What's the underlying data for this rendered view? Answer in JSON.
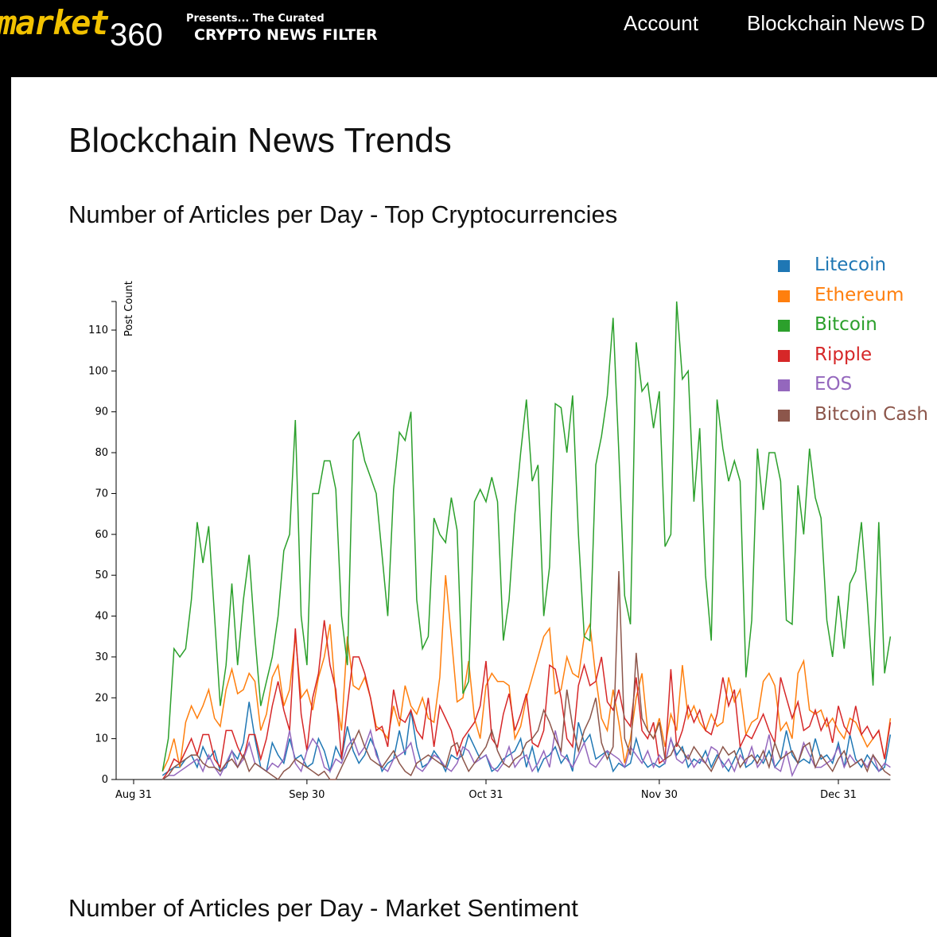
{
  "header": {
    "logo_text": "market360",
    "tagline_top": "Presents... The Curated",
    "tagline_main": "CRYPTO NEWS FILTER",
    "nav": [
      {
        "label": "Account"
      },
      {
        "label": "Blockchain News D"
      }
    ]
  },
  "page": {
    "title": "Blockchain News Trends",
    "section1_title": "Number of Articles per Day - Top Cryptocurrencies",
    "section2_title": "Number of Articles per Day - Market Sentiment"
  },
  "chart_data": {
    "type": "line",
    "title": "",
    "xlabel": "",
    "ylabel": "Post Count",
    "ylim": [
      0,
      117
    ],
    "yticks": [
      0,
      10,
      20,
      30,
      40,
      50,
      60,
      70,
      80,
      90,
      100,
      110
    ],
    "xticks": [
      "Aug 31",
      "Sep 30",
      "Oct 31",
      "Nov 30",
      "Dec 31"
    ],
    "grid": false,
    "legend_position": "top-right",
    "x": [
      "Sep 5",
      "Sep 6",
      "Sep 7",
      "Sep 8",
      "Sep 9",
      "Sep 10",
      "Sep 11",
      "Sep 12",
      "Sep 13",
      "Sep 14",
      "Sep 15",
      "Sep 16",
      "Sep 17",
      "Sep 18",
      "Sep 19",
      "Sep 20",
      "Sep 21",
      "Sep 22",
      "Sep 23",
      "Sep 24",
      "Sep 25",
      "Sep 26",
      "Sep 27",
      "Sep 28",
      "Sep 29",
      "Sep 30",
      "Oct 1",
      "Oct 2",
      "Oct 3",
      "Oct 4",
      "Oct 5",
      "Oct 6",
      "Oct 7",
      "Oct 8",
      "Oct 9",
      "Oct 10",
      "Oct 11",
      "Oct 12",
      "Oct 13",
      "Oct 14",
      "Oct 15",
      "Oct 16",
      "Oct 17",
      "Oct 18",
      "Oct 19",
      "Oct 20",
      "Oct 21",
      "Oct 22",
      "Oct 23",
      "Oct 24",
      "Oct 25",
      "Oct 26",
      "Oct 27",
      "Oct 28",
      "Oct 29",
      "Oct 30",
      "Oct 31",
      "Nov 1",
      "Nov 2",
      "Nov 3",
      "Nov 4",
      "Nov 5",
      "Nov 6",
      "Nov 7",
      "Nov 8",
      "Nov 9",
      "Nov 10",
      "Nov 11",
      "Nov 12",
      "Nov 13",
      "Nov 14",
      "Nov 15",
      "Nov 16",
      "Nov 17",
      "Nov 18",
      "Nov 19",
      "Nov 20",
      "Nov 21",
      "Nov 22",
      "Nov 23",
      "Nov 24",
      "Nov 25",
      "Nov 26",
      "Nov 27",
      "Nov 28",
      "Nov 29",
      "Nov 30",
      "Dec 1",
      "Dec 2",
      "Dec 3",
      "Dec 4",
      "Dec 5",
      "Dec 6",
      "Dec 7",
      "Dec 8",
      "Dec 9",
      "Dec 10",
      "Dec 11",
      "Dec 12",
      "Dec 13",
      "Dec 14",
      "Dec 15",
      "Dec 16",
      "Dec 17",
      "Dec 18",
      "Dec 19",
      "Dec 20",
      "Dec 21",
      "Dec 22",
      "Dec 23",
      "Dec 24",
      "Dec 25",
      "Dec 26",
      "Dec 27",
      "Dec 28",
      "Dec 29",
      "Dec 30",
      "Dec 31",
      "Jan 1",
      "Jan 2",
      "Jan 3",
      "Jan 4",
      "Jan 5",
      "Jan 6",
      "Jan 7",
      "Jan 8",
      "Jan 9"
    ],
    "series": [
      {
        "name": "Litecoin",
        "color": "#1f77b4",
        "values": [
          1,
          2,
          3,
          3,
          5,
          6,
          3,
          8,
          5,
          7,
          2,
          3,
          7,
          5,
          9,
          19,
          10,
          3,
          2,
          9,
          6,
          4,
          10,
          5,
          6,
          3,
          4,
          10,
          7,
          2,
          8,
          5,
          13,
          7,
          4,
          6,
          10,
          7,
          2,
          4,
          5,
          12,
          6,
          17,
          8,
          3,
          4,
          7,
          5,
          2,
          6,
          5,
          6,
          11,
          8,
          5,
          6,
          2,
          3,
          5,
          6,
          7,
          10,
          3,
          8,
          2,
          5,
          6,
          8,
          4,
          6,
          2,
          14,
          9,
          11,
          5,
          6,
          7,
          2,
          4,
          3,
          4,
          10,
          5,
          3,
          4,
          3,
          4,
          10,
          6,
          8,
          3,
          5,
          4,
          7,
          3,
          6,
          4,
          2,
          5,
          8,
          3,
          4,
          6,
          4,
          7,
          3,
          5,
          12,
          6,
          4,
          5,
          4,
          10,
          5,
          6,
          4,
          9,
          3,
          11,
          5,
          3,
          6,
          4,
          2,
          3,
          11
        ]
      },
      {
        "name": "Ethereum",
        "color": "#ff7f0e",
        "values": [
          2,
          5,
          10,
          3,
          14,
          18,
          15,
          18,
          22,
          15,
          13,
          22,
          27,
          21,
          22,
          26,
          24,
          12,
          16,
          25,
          28,
          18,
          22,
          35,
          20,
          22,
          17,
          25,
          30,
          38,
          20,
          12,
          35,
          23,
          22,
          25,
          20,
          13,
          12,
          10,
          18,
          13,
          23,
          18,
          16,
          20,
          15,
          14,
          25,
          50,
          35,
          19,
          20,
          29,
          15,
          10,
          23,
          26,
          24,
          24,
          23,
          10,
          13,
          20,
          25,
          30,
          35,
          37,
          21,
          22,
          30,
          26,
          25,
          35,
          38,
          25,
          15,
          12,
          22,
          14,
          4,
          10,
          20,
          26,
          12,
          10,
          15,
          8,
          16,
          12,
          28,
          15,
          18,
          14,
          12,
          16,
          13,
          14,
          25,
          19,
          22,
          11,
          14,
          15,
          24,
          26,
          23,
          12,
          14,
          10,
          26,
          29,
          17,
          16,
          17,
          13,
          15,
          12,
          10,
          15,
          14,
          11,
          8,
          10,
          12,
          5,
          15
        ]
      },
      {
        "name": "Bitcoin",
        "color": "#2ca02c",
        "values": [
          2,
          10,
          32,
          30,
          32,
          44,
          63,
          53,
          62,
          40,
          18,
          28,
          48,
          28,
          44,
          55,
          35,
          18,
          24,
          30,
          40,
          56,
          60,
          88,
          40,
          28,
          70,
          70,
          78,
          78,
          71,
          40,
          28,
          83,
          85,
          78,
          74,
          70,
          55,
          40,
          71,
          85,
          83,
          90,
          44,
          32,
          35,
          64,
          60,
          58,
          69,
          61,
          21,
          24,
          68,
          71,
          68,
          74,
          68,
          34,
          44,
          65,
          80,
          93,
          73,
          77,
          40,
          52,
          92,
          91,
          80,
          94,
          60,
          35,
          34,
          77,
          84,
          94,
          113,
          80,
          45,
          38,
          107,
          95,
          97,
          86,
          95,
          57,
          60,
          117,
          98,
          100,
          68,
          86,
          50,
          34,
          93,
          81,
          73,
          78,
          73,
          25,
          39,
          81,
          66,
          80,
          80,
          73,
          39,
          38,
          72,
          60,
          81,
          69,
          64,
          39,
          30,
          45,
          32,
          48,
          51,
          63,
          44,
          23,
          63,
          26,
          35
        ]
      },
      {
        "name": "Ripple",
        "color": "#d62728",
        "values": [
          0,
          2,
          5,
          4,
          7,
          10,
          6,
          11,
          11,
          5,
          3,
          12,
          12,
          8,
          5,
          11,
          11,
          5,
          10,
          18,
          24,
          17,
          12,
          37,
          16,
          7,
          20,
          26,
          39,
          28,
          22,
          5,
          18,
          30,
          30,
          26,
          20,
          12,
          13,
          8,
          22,
          15,
          14,
          17,
          12,
          10,
          20,
          8,
          18,
          15,
          12,
          6,
          10,
          12,
          14,
          18,
          29,
          10,
          8,
          16,
          21,
          12,
          16,
          21,
          9,
          8,
          12,
          28,
          27,
          20,
          10,
          8,
          23,
          28,
          23,
          24,
          30,
          19,
          17,
          22,
          15,
          13,
          25,
          12,
          10,
          14,
          4,
          5,
          27,
          8,
          12,
          18,
          14,
          17,
          12,
          11,
          16,
          25,
          18,
          22,
          8,
          11,
          10,
          13,
          16,
          12,
          9,
          25,
          20,
          15,
          19,
          12,
          13,
          17,
          12,
          15,
          9,
          18,
          13,
          11,
          18,
          11,
          13,
          10,
          12,
          5,
          14
        ]
      },
      {
        "name": "EOS",
        "color": "#9467bd",
        "values": [
          0,
          1,
          1,
          2,
          3,
          4,
          5,
          2,
          6,
          3,
          1,
          4,
          7,
          3,
          5,
          9,
          4,
          3,
          2,
          4,
          3,
          5,
          12,
          4,
          2,
          7,
          10,
          8,
          3,
          2,
          5,
          4,
          8,
          10,
          6,
          8,
          12,
          6,
          3,
          2,
          5,
          6,
          7,
          9,
          3,
          2,
          4,
          6,
          5,
          3,
          2,
          4,
          8,
          7,
          4,
          5,
          6,
          3,
          2,
          4,
          8,
          3,
          5,
          6,
          2,
          4,
          7,
          3,
          12,
          6,
          5,
          3,
          6,
          9,
          4,
          3,
          5,
          7,
          6,
          5,
          3,
          8,
          6,
          4,
          7,
          3,
          6,
          4,
          10,
          5,
          4,
          6,
          3,
          5,
          4,
          8,
          7,
          3,
          5,
          2,
          6,
          4,
          8,
          3,
          5,
          11,
          3,
          2,
          7,
          1,
          4,
          9,
          6,
          3,
          3,
          4,
          5,
          8,
          3,
          6,
          4,
          5,
          3,
          6,
          2,
          4,
          3
        ]
      },
      {
        "name": "Bitcoin Cash",
        "color": "#8c564b",
        "values": [
          0,
          1,
          3,
          4,
          5,
          6,
          6,
          4,
          3,
          3,
          2,
          4,
          5,
          3,
          6,
          2,
          4,
          3,
          2,
          1,
          0,
          2,
          3,
          5,
          4,
          3,
          2,
          1,
          2,
          0,
          0,
          3,
          6,
          9,
          12,
          8,
          5,
          4,
          3,
          5,
          7,
          4,
          2,
          1,
          4,
          5,
          6,
          5,
          4,
          3,
          8,
          9,
          5,
          2,
          4,
          6,
          8,
          12,
          7,
          4,
          3,
          5,
          6,
          9,
          10,
          12,
          17,
          14,
          10,
          7,
          22,
          13,
          7,
          12,
          15,
          20,
          9,
          5,
          8,
          51,
          10,
          6,
          31,
          15,
          12,
          10,
          14,
          5,
          6,
          9,
          7,
          5,
          8,
          6,
          4,
          2,
          5,
          8,
          6,
          7,
          3,
          5,
          6,
          4,
          7,
          3,
          9,
          5,
          6,
          7,
          4,
          8,
          9,
          3,
          6,
          4,
          2,
          5,
          7,
          3,
          4,
          5,
          2,
          6,
          4,
          2,
          1
        ]
      }
    ]
  }
}
